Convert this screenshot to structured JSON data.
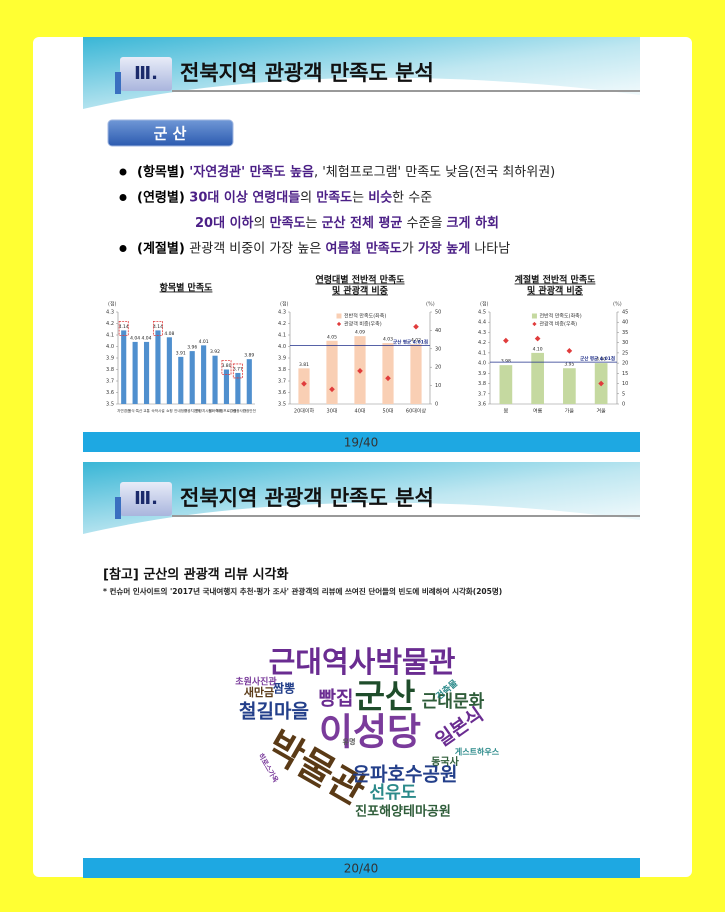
{
  "slides": [
    {
      "header": {
        "numeral": "Ⅲ.",
        "title": "전북지역 관광객 만족도 분석"
      },
      "section": "군 산",
      "bullets": [
        {
          "lines": [
            [
              {
                "text": "(항목별) ",
                "color": "#000000",
                "bold": true
              },
              {
                "text": "'자연경관' 만족도 높음",
                "color": "#4b1f86",
                "bold": true
              },
              {
                "text": ", '체험프로그램' 만족도 낮음",
                "color": "#222222"
              },
              {
                "text": "(전국 최하위권)",
                "color": "#222222"
              }
            ]
          ]
        },
        {
          "lines": [
            [
              {
                "text": "(연령별) ",
                "color": "#000000",
                "bold": true
              },
              {
                "text": "30대 이상 연령대들",
                "color": "#4b1f86",
                "bold": true
              },
              {
                "text": "의 ",
                "color": "#222222"
              },
              {
                "text": "만족도",
                "color": "#4b1f86",
                "bold": true
              },
              {
                "text": "는 ",
                "color": "#222222"
              },
              {
                "text": "비슷",
                "color": "#4b1f86",
                "bold": true
              },
              {
                "text": "한 수준",
                "color": "#222222"
              }
            ],
            [
              {
                "text": "20대 이하",
                "color": "#4b1f86",
                "bold": true
              },
              {
                "text": "의 ",
                "color": "#222222"
              },
              {
                "text": "만족도",
                "color": "#4b1f86",
                "bold": true
              },
              {
                "text": "는 ",
                "color": "#222222"
              },
              {
                "text": "군산 전체 평균",
                "color": "#4b1f86",
                "bold": true
              },
              {
                "text": " 수준을 ",
                "color": "#222222"
              },
              {
                "text": "크게 하회",
                "color": "#4b1f86",
                "bold": true
              }
            ]
          ]
        },
        {
          "lines": [
            [
              {
                "text": "(계절별) ",
                "color": "#000000",
                "bold": true
              },
              {
                "text": "관광객 비중이 가장 높은 ",
                "color": "#222222"
              },
              {
                "text": "여름철 만족도",
                "color": "#4b1f86",
                "bold": true
              },
              {
                "text": "가 ",
                "color": "#222222"
              },
              {
                "text": "가장 높게",
                "color": "#4b1f86",
                "bold": true
              },
              {
                "text": " 나타남",
                "color": "#222222"
              }
            ]
          ]
        }
      ],
      "page": "19/40"
    },
    {
      "header": {
        "numeral": "Ⅲ.",
        "title": "전북지역 관광객 만족도 분석"
      },
      "reference_title": "[참고] 군산의 관광객 리뷰 시각화",
      "note": "* 컨슈머 인사이트의 '2017년 국내여행지 추천·평가 조사' 관광객의 리뷰에 쓰여진 단어들의 빈도에 비례하여 시각화(205명)",
      "word_cloud": [
        {
          "text": "근대역사박물관",
          "color": "#6a2c91"
        },
        {
          "text": "군산",
          "color": "#1f4d2b"
        },
        {
          "text": "이성당",
          "color": "#7a3b9b"
        },
        {
          "text": "박물관",
          "color": "#5a3a16"
        },
        {
          "text": "철길마을",
          "color": "#233f8a"
        },
        {
          "text": "빵집",
          "color": "#6a2c91"
        },
        {
          "text": "근대문화",
          "color": "#2f5d3a"
        },
        {
          "text": "일본식",
          "color": "#6a2c91"
        },
        {
          "text": "은파호수공원",
          "color": "#233f8a"
        },
        {
          "text": "선유도",
          "color": "#2b8a8a"
        },
        {
          "text": "진포해양테마공원",
          "color": "#2f5d3a"
        },
        {
          "text": "짬뽕",
          "color": "#233f8a"
        },
        {
          "text": "새만금",
          "color": "#5a3a16"
        },
        {
          "text": "초원사진관",
          "color": "#7a3b9b"
        },
        {
          "text": "건축물",
          "color": "#2b8a8a"
        },
        {
          "text": "게스트하우스",
          "color": "#2b8a8a"
        },
        {
          "text": "동국사",
          "color": "#2f5d3a"
        },
        {
          "text": "유명",
          "color": "#555555"
        },
        {
          "text": "히로스가옥",
          "color": "#7a3b9b"
        }
      ],
      "page": "20/40"
    }
  ],
  "chart_data": [
    {
      "type": "bar",
      "title": [
        "항목별 만족도"
      ],
      "y_unit": "(점)",
      "categories": [
        "자연경관",
        "음식·특산",
        "교통",
        "숙박시설",
        "쇼핑",
        "안내정보",
        "관광지편의",
        "관광지시설",
        "문화축제",
        "체험프로그램",
        "관광종사자",
        "관광안전"
      ],
      "series": [
        {
          "color": "#4f8fce",
          "values": [
            4.14,
            4.04,
            4.04,
            4.14,
            4.08,
            3.91,
            3.96,
            4.01,
            3.92,
            3.8,
            3.77,
            3.89
          ],
          "value_labels": [
            "4.14",
            "4.04",
            "4.04",
            "4.14",
            "4.08",
            "3.91",
            "3.96",
            "4.01",
            "3.92",
            "3.80",
            "3.77",
            "3.89"
          ]
        }
      ],
      "highlight": [
        0,
        3,
        9,
        10
      ],
      "highlight_color": "#e03c3c",
      "ylim": [
        3.5,
        4.3
      ],
      "yticks": [
        3.5,
        3.6,
        3.7,
        3.8,
        3.9,
        {
          "value": 4,
          "label": "4.0"
        },
        4.1,
        4.2,
        4.3
      ]
    },
    {
      "type": "combo",
      "title": [
        "연령대별 전반적 만족도",
        "및 관광객 비중"
      ],
      "y_unit": "(점)",
      "y2_unit": "(%)",
      "categories": [
        "20대이하",
        "30대",
        "40대",
        "50대",
        "60대이상"
      ],
      "series": [
        {
          "name": "전반적 만족도(좌축)",
          "color": "#f9cfb4",
          "values": [
            3.81,
            4.05,
            4.09,
            4.03,
            4.02
          ],
          "value_labels": [
            "3.81",
            "4.05",
            "4.09",
            "4.03",
            "4.02"
          ]
        },
        {
          "name": "관광객 비중(우축)",
          "color": "#e03c3c",
          "axis": "y2",
          "values": [
            11,
            8,
            18,
            14,
            42
          ]
        }
      ],
      "reference_line": {
        "value": 4.01,
        "label": "군산 평균 4.01점",
        "color": "#1f2f8a"
      },
      "ylim": [
        3.5,
        4.3
      ],
      "yticks": [
        3.5,
        3.6,
        3.7,
        3.8,
        3.9,
        {
          "value": 4,
          "label": "4.0"
        },
        4.1,
        4.2,
        4.3
      ],
      "y2lim": [
        0,
        50
      ],
      "y2ticks": [
        0,
        10,
        20,
        30,
        40,
        50
      ]
    },
    {
      "type": "combo",
      "title": [
        "계절별 전반적 만족도",
        "및 관광객 비중"
      ],
      "y_unit": "(점)",
      "y2_unit": "(%)",
      "categories": [
        "봄",
        "여름",
        "가을",
        "겨울"
      ],
      "series": [
        {
          "name": "전반적 만족도(좌축)",
          "color": "#c5d9a0",
          "values": [
            3.98,
            4.1,
            3.95,
            4.0
          ],
          "value_labels": [
            "3.98",
            "4.10",
            "3.95",
            "4.00"
          ]
        },
        {
          "name": "관광객 비중(우축)",
          "color": "#e03c3c",
          "axis": "y2",
          "values": [
            31,
            32,
            26,
            10
          ]
        }
      ],
      "reference_line": {
        "value": 4.01,
        "label": "군산 평균 4.01점",
        "color": "#1f2f8a"
      },
      "ylim": [
        3.6,
        4.5
      ],
      "yticks": [
        3.6,
        3.7,
        3.8,
        3.9,
        {
          "value": 4,
          "label": "4.0"
        },
        4.1,
        4.2,
        4.3,
        4.4,
        4.5
      ],
      "y2lim": [
        0,
        45
      ],
      "y2ticks": [
        0,
        5,
        10,
        15,
        20,
        25,
        30,
        35,
        40,
        45
      ]
    }
  ]
}
